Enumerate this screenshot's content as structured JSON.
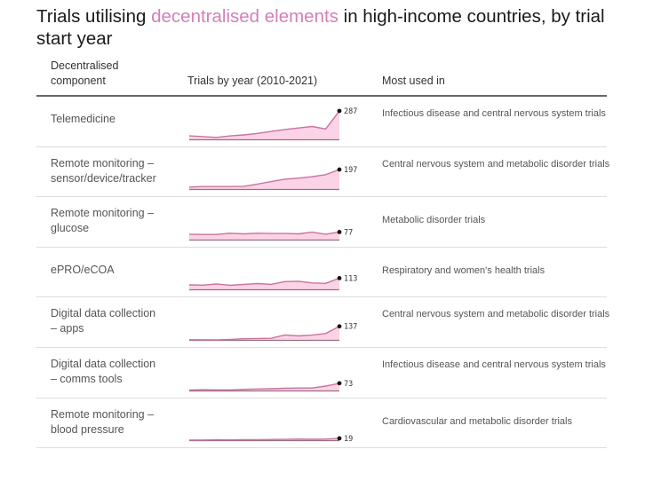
{
  "title": {
    "prefix": "Trials utilising ",
    "highlight": "decentralised elements",
    "suffix": " in high-income countries, by trial start year",
    "highlight_color": "#d57fb8"
  },
  "headers": {
    "component_line1": "Decentralised",
    "component_line2": "component",
    "trials": "Trials by year (2010-2021)",
    "used": "Most used in"
  },
  "chart_data": {
    "type": "area",
    "title": "Trials utilising decentralised elements in high-income countries, by trial start year",
    "x": [
      2010,
      2011,
      2012,
      2013,
      2014,
      2015,
      2016,
      2017,
      2018,
      2019,
      2020,
      2021
    ],
    "xlabel": "Trials by year (2010-2021)",
    "ylabel": "",
    "colors": {
      "line": "#c9739f",
      "fill": "#fbd3e6",
      "baseline": "#9a7083",
      "dot": "#111111"
    },
    "series": [
      {
        "name": "Telemedicine",
        "line1": "Telemedicine",
        "line2": "",
        "values": [
          35,
          28,
          20,
          35,
          45,
          60,
          80,
          100,
          115,
          130,
          105,
          287
        ],
        "end_label": "287",
        "used": "Infectious disease and central nervous system trials"
      },
      {
        "name": "Remote monitoring – sensor/device/tracker",
        "line1": "Remote monitoring –",
        "line2": "sensor/device/tracker",
        "values": [
          20,
          25,
          25,
          25,
          28,
          50,
          75,
          100,
          110,
          125,
          145,
          197
        ],
        "end_label": "197",
        "used": "Central nervous system and metabolic disorder trials"
      },
      {
        "name": "Remote monitoring – glucose",
        "line1": "Remote monitoring –",
        "line2": "glucose",
        "values": [
          55,
          52,
          52,
          65,
          58,
          65,
          62,
          62,
          58,
          75,
          55,
          77
        ],
        "end_label": "77",
        "used": "Metabolic disorder trials"
      },
      {
        "name": "ePRO/eCOA",
        "line1": "ePRO/eCOA",
        "line2": "",
        "values": [
          45,
          42,
          55,
          40,
          50,
          58,
          50,
          78,
          82,
          65,
          60,
          113
        ],
        "end_label": "113",
        "used": "Respiratory and women's health trials"
      },
      {
        "name": "Digital data collection – apps",
        "line1": "Digital data collection",
        "line2": "– apps",
        "values": [
          2,
          2,
          0,
          5,
          12,
          14,
          16,
          50,
          40,
          48,
          65,
          137
        ],
        "end_label": "137",
        "used": "Central nervous system and metabolic disorder trials"
      },
      {
        "name": "Digital data collection – comms tools",
        "line1": "Digital data collection",
        "line2": "– comms tools",
        "values": [
          5,
          8,
          6,
          6,
          12,
          15,
          18,
          22,
          25,
          25,
          45,
          73
        ],
        "end_label": "73",
        "used": "Infectious disease and central nervous system trials"
      },
      {
        "name": "Remote monitoring – blood pressure",
        "line1": "Remote monitoring –",
        "line2": "blood pressure",
        "values": [
          2,
          2,
          5,
          4,
          5,
          5,
          7,
          8,
          12,
          9,
          12,
          19
        ],
        "end_label": "19",
        "used": "Cardiovascular and metabolic disorder trials"
      }
    ]
  }
}
